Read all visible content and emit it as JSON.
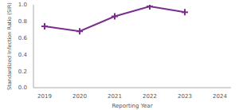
{
  "chart_data": {
    "type": "line",
    "x_label": "Reporting Year",
    "y_label": "Standardized Infection Ratio (SIR)",
    "categories": [
      "2019",
      "2020",
      "2021",
      "2022",
      "2023",
      "2024"
    ],
    "values": [
      0.74,
      0.68,
      0.86,
      0.98,
      0.91,
      null
    ],
    "color": "#7b2d8e",
    "marker": "plus",
    "ylim": [
      0,
      1.0
    ],
    "yticks": [
      {
        "value": 0,
        "label": "0.0"
      },
      {
        "value": 0.2,
        "label": "0.2"
      },
      {
        "value": 0.4,
        "label": "0.4"
      },
      {
        "value": 0.6,
        "label": "0.6"
      },
      {
        "value": 0.8,
        "label": "0.8"
      },
      {
        "value": 1.0,
        "label": "1.0"
      }
    ],
    "grid": false
  }
}
